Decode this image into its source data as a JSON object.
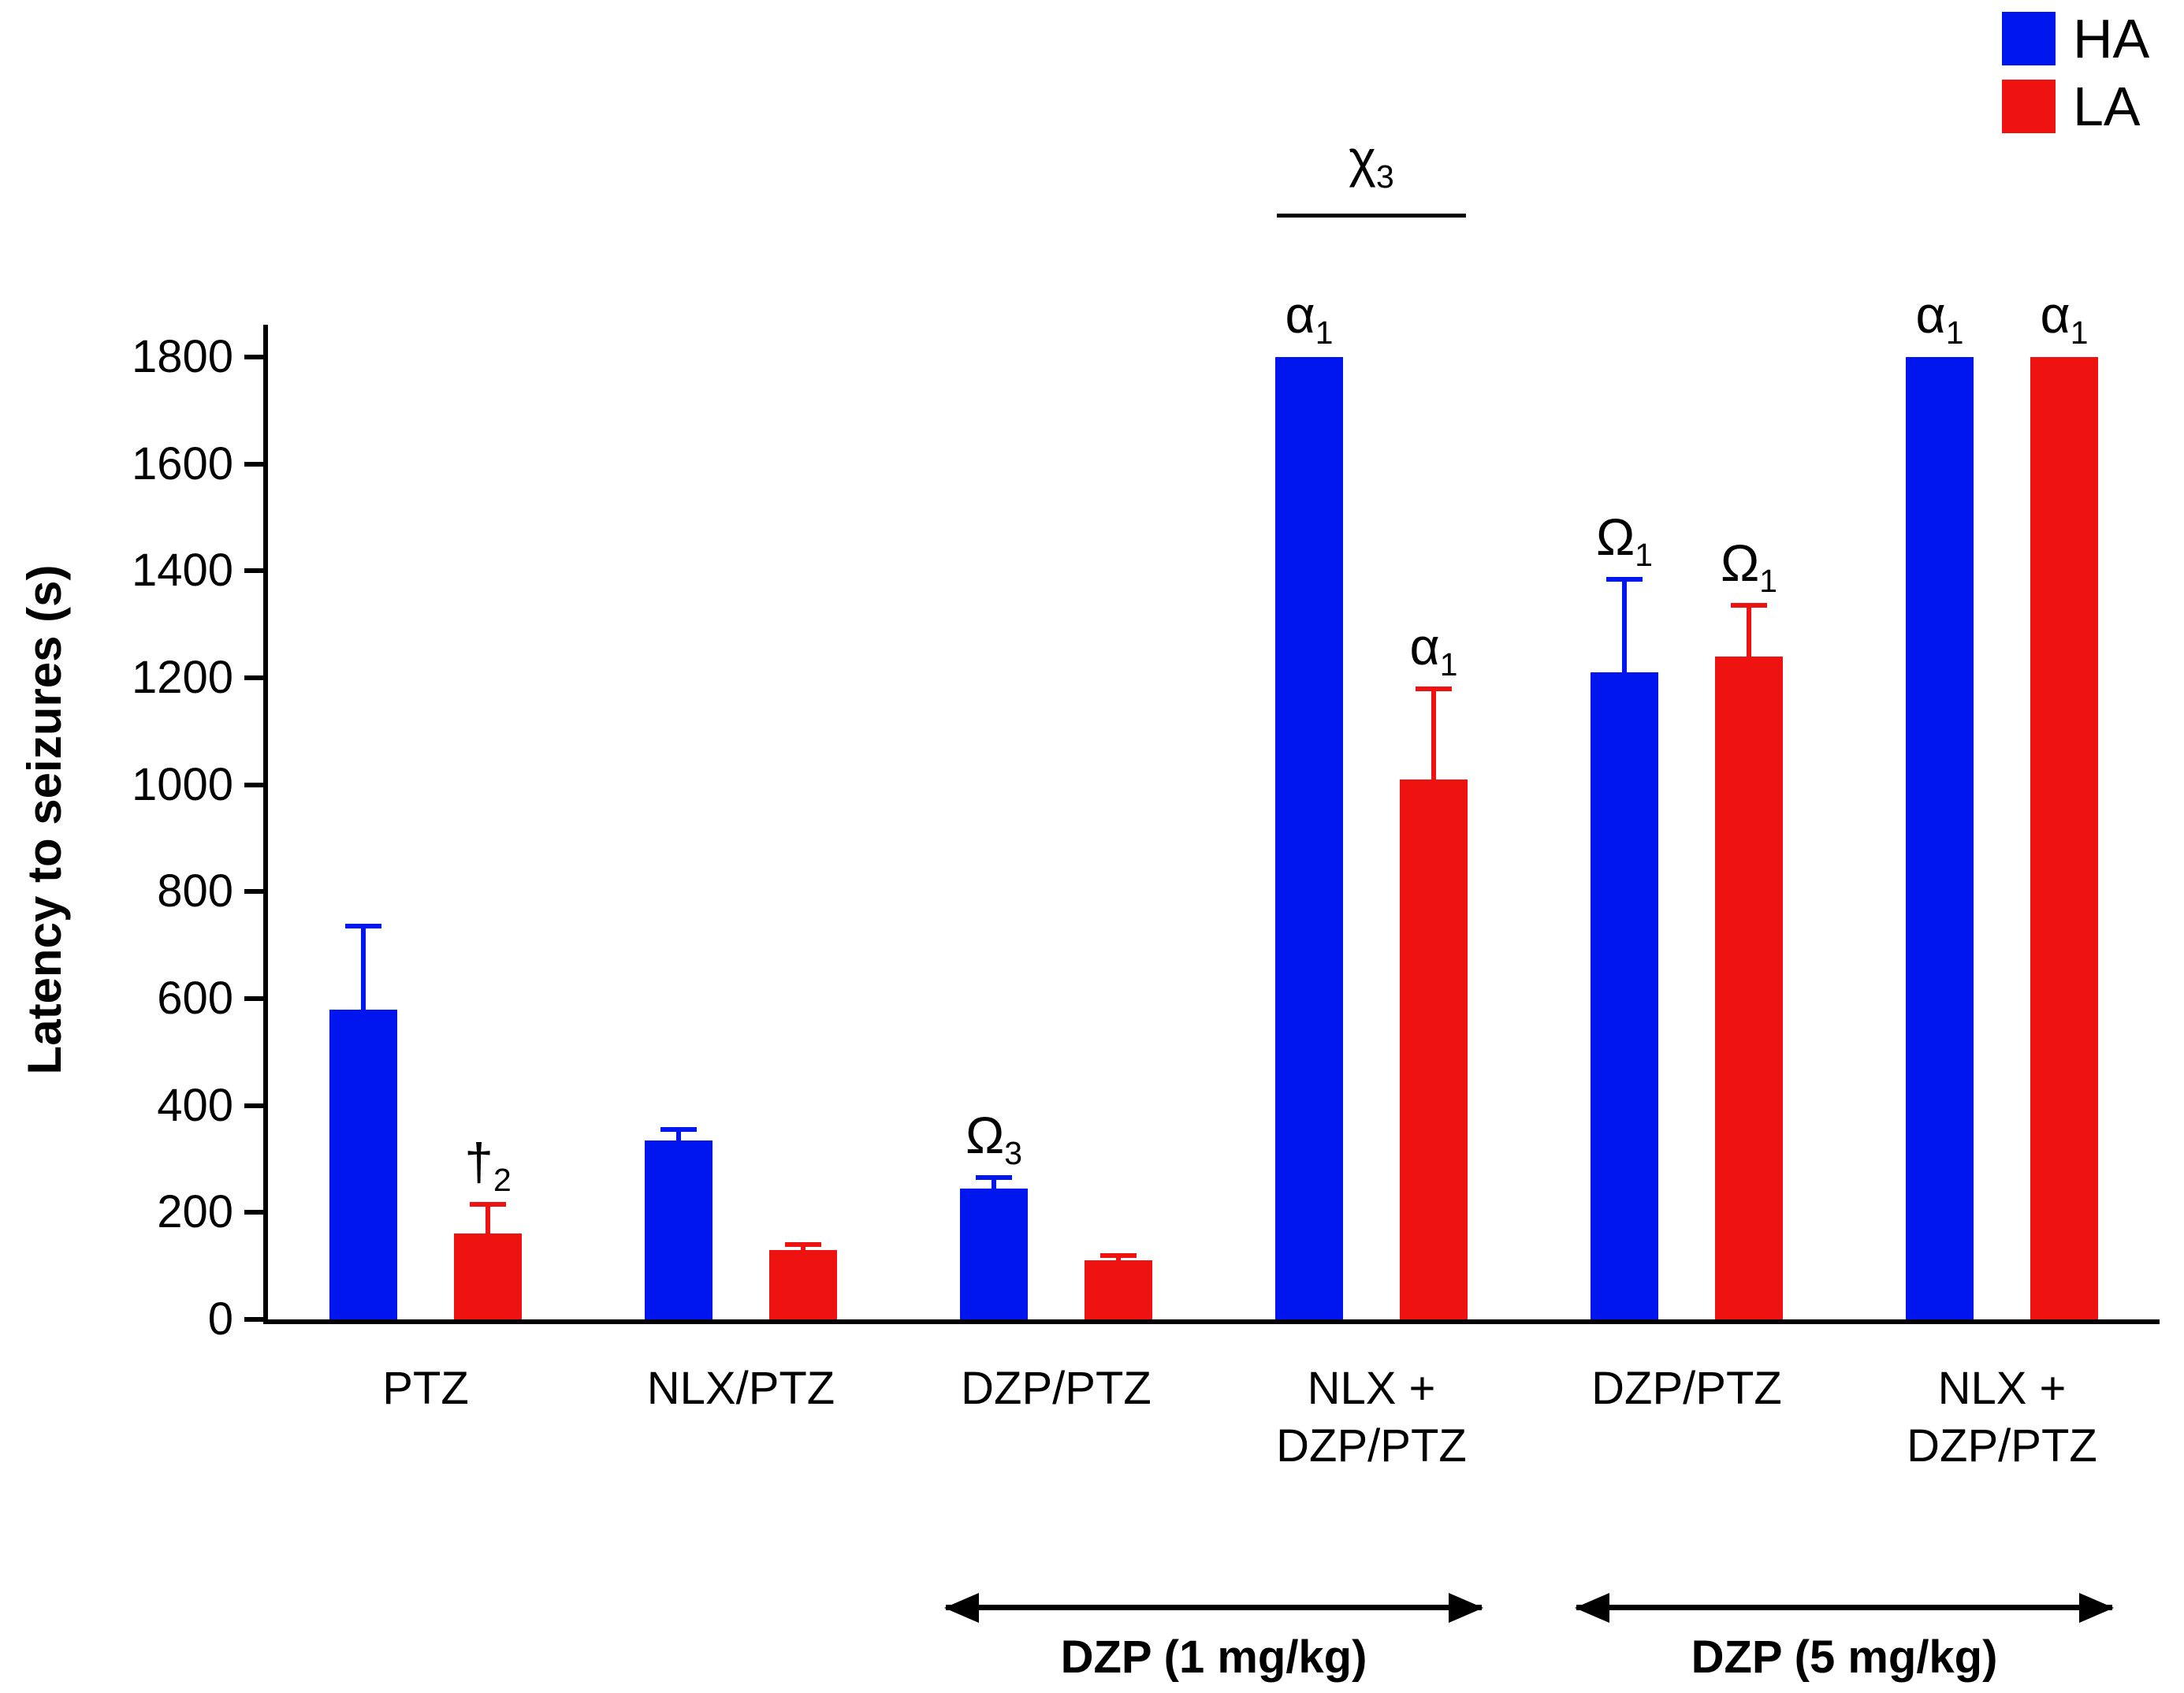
{
  "legend": {
    "items": [
      {
        "label": "HA",
        "color": "#0016ee"
      },
      {
        "label": "LA",
        "color": "#ee1311"
      }
    ]
  },
  "chart_data": {
    "type": "bar",
    "title": "",
    "ylabel": "Latency to seizures (s)",
    "xlabel": "",
    "ylim": [
      0,
      1800
    ],
    "yticks": [
      0,
      200,
      400,
      600,
      800,
      1000,
      1200,
      1400,
      1600,
      1800
    ],
    "grid": false,
    "legend_position": "top-right",
    "categories": [
      "PTZ",
      "NLX/PTZ",
      "DZP/PTZ",
      "NLX +\nDZP/PTZ",
      "DZP/PTZ",
      "NLX +\nDZP/PTZ"
    ],
    "series": [
      {
        "name": "HA",
        "color": "#0016ee",
        "values": [
          580,
          335,
          245,
          1800,
          1210,
          1800
        ],
        "errors": [
          155,
          20,
          20,
          0,
          175,
          0
        ],
        "annotations": [
          "",
          "",
          "Ω3",
          "α1",
          "Ω1",
          "α1"
        ]
      },
      {
        "name": "LA",
        "color": "#ee1311",
        "values": [
          160,
          130,
          110,
          1010,
          1240,
          1800
        ],
        "errors": [
          55,
          10,
          10,
          170,
          95,
          0
        ],
        "annotations": [
          "†2",
          "",
          "",
          "α1",
          "Ω1",
          "α1"
        ]
      }
    ],
    "comparison_annotation": {
      "text": "χ3",
      "group": 4
    },
    "dose_arrows": [
      {
        "label": "DZP (1 mg/kg)",
        "groups": [
          3,
          4
        ]
      },
      {
        "label": "DZP (5 mg/kg)",
        "groups": [
          5,
          6
        ]
      }
    ]
  }
}
